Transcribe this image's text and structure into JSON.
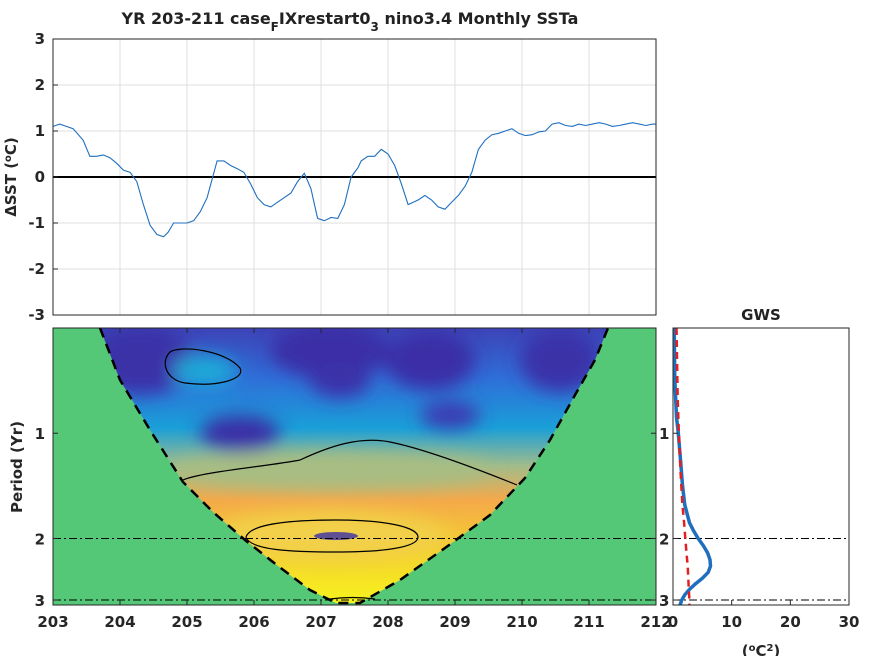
{
  "title": {
    "pre": "YR 203-211 case",
    "sub1": "F",
    "mid": "IXrestart0",
    "sub2": "3",
    "post": " nino3.4 Monthly SSTa"
  },
  "chart_data": [
    {
      "type": "line",
      "panel": "time series",
      "ylabel_prefix": "ΔSST (",
      "ylabel_deg": "o",
      "ylabel_suffix": "C)",
      "xlim": [
        203,
        212
      ],
      "ylim": [
        -3,
        3
      ],
      "yticks": [
        -3,
        -2,
        -1,
        0,
        1,
        2,
        3
      ],
      "grid": true,
      "zero_line": 0,
      "line_color": "#1f6fbf",
      "series": [
        {
          "x": [
            203.0,
            203.1,
            203.2,
            203.3,
            203.45,
            203.55,
            203.65,
            203.75,
            203.85,
            203.95,
            204.05,
            204.15,
            204.25,
            204.35,
            204.45,
            204.55,
            204.65,
            204.72,
            204.8,
            204.9,
            205.0,
            205.1,
            205.2,
            205.3,
            205.45,
            205.55,
            205.65,
            205.75,
            205.85,
            205.95,
            206.05,
            206.15,
            206.25,
            206.35,
            206.45,
            206.55,
            206.65,
            206.75,
            206.85,
            206.95,
            207.05,
            207.15,
            207.25,
            207.35,
            207.45,
            207.55,
            207.6,
            207.7,
            207.8,
            207.9,
            208.0,
            208.1,
            208.2,
            208.3,
            208.45,
            208.55,
            208.65,
            208.75,
            208.85,
            208.95,
            209.05,
            209.15,
            209.25,
            209.35,
            209.45,
            209.55,
            209.65,
            209.75,
            209.85,
            209.95,
            210.05,
            210.15,
            210.25,
            210.35,
            210.45,
            210.55,
            210.65,
            210.75,
            210.85,
            210.95,
            211.05,
            211.15,
            211.25,
            211.35,
            211.45,
            211.55,
            211.65,
            211.75,
            211.85,
            211.95,
            212.0
          ],
          "y": [
            1.1,
            1.15,
            1.1,
            1.05,
            0.8,
            0.45,
            0.45,
            0.48,
            0.42,
            0.3,
            0.15,
            0.1,
            -0.1,
            -0.6,
            -1.05,
            -1.25,
            -1.3,
            -1.2,
            -1.0,
            -1.0,
            -1.0,
            -0.95,
            -0.75,
            -0.45,
            0.35,
            0.35,
            0.25,
            0.18,
            0.1,
            -0.15,
            -0.45,
            -0.6,
            -0.65,
            -0.55,
            -0.45,
            -0.35,
            -0.1,
            0.08,
            -0.25,
            -0.9,
            -0.95,
            -0.88,
            -0.9,
            -0.6,
            0.0,
            0.2,
            0.35,
            0.45,
            0.45,
            0.6,
            0.5,
            0.25,
            -0.15,
            -0.6,
            -0.5,
            -0.4,
            -0.5,
            -0.65,
            -0.7,
            -0.55,
            -0.4,
            -0.2,
            0.1,
            0.6,
            0.8,
            0.92,
            0.95,
            1.0,
            1.05,
            0.95,
            0.9,
            0.92,
            0.98,
            1.0,
            1.15,
            1.18,
            1.12,
            1.1,
            1.15,
            1.12,
            1.15,
            1.18,
            1.15,
            1.1,
            1.12,
            1.15,
            1.18,
            1.15,
            1.12,
            1.15,
            1.15
          ]
        }
      ]
    },
    {
      "type": "heatmap",
      "panel": "wavelet power spectrum",
      "ylabel": "Period (Yr)",
      "xlim": [
        203,
        212
      ],
      "xticks": [
        203,
        204,
        205,
        206,
        207,
        208,
        209,
        210,
        211,
        212
      ],
      "yticks": [
        1,
        2,
        3
      ],
      "log_y": true,
      "period_range": [
        0.5,
        3.1
      ],
      "outside_coi_color": "#55c878",
      "reference_periods": [
        2,
        3
      ]
    },
    {
      "type": "line",
      "panel": "global wavelet spectrum",
      "title": "GWS",
      "xlabel_prefix": "(",
      "xlabel_deg": "o",
      "xlabel_mid": "C",
      "xlabel_pow": "2",
      "xlabel_suffix": ")",
      "xlim": [
        0,
        30
      ],
      "xticks": [
        0,
        10,
        20,
        30
      ],
      "yticks": [
        1,
        2,
        3
      ],
      "reference_periods": [
        2,
        3
      ],
      "series": [
        {
          "color": "#1f6fbf",
          "style": "solid",
          "period": [
            0.5,
            0.7,
            0.9,
            1.0,
            1.2,
            1.4,
            1.6,
            1.8,
            1.9,
            2.0,
            2.1,
            2.2,
            2.3,
            2.4,
            2.5,
            2.6,
            2.7,
            2.8,
            2.9,
            3.0,
            3.1
          ],
          "power": [
            0.2,
            0.3,
            0.6,
            0.9,
            1.3,
            1.6,
            2.0,
            2.8,
            3.5,
            4.3,
            5.2,
            5.9,
            6.3,
            6.4,
            6.0,
            5.0,
            3.8,
            2.8,
            2.0,
            1.5,
            1.2
          ]
        },
        {
          "color": "#e32020",
          "style": "dashed",
          "period": [
            0.5,
            0.8,
            1.0,
            1.3,
            1.6,
            1.8,
            2.0,
            2.2,
            2.4,
            2.6,
            2.8,
            3.0,
            3.1
          ],
          "power": [
            0.6,
            0.8,
            1.0,
            1.3,
            1.6,
            1.9,
            2.1,
            2.3,
            2.5,
            2.6,
            2.7,
            2.8,
            2.8
          ]
        }
      ]
    }
  ]
}
